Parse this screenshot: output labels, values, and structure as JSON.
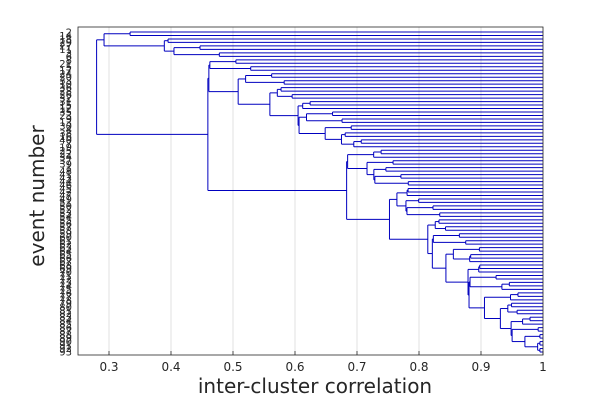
{
  "chart_data": {
    "type": "dendrogram",
    "title": "",
    "xlabel": "inter-cluster correlation",
    "ylabel": "event number",
    "xlim": [
      0.25,
      1.0
    ],
    "xticks": [
      "0.3",
      "0.4",
      "0.5",
      "0.6",
      "0.7",
      "0.8",
      "0.9",
      "1"
    ],
    "xtick_values": [
      0.3,
      0.4,
      0.5,
      0.6,
      0.7,
      0.8,
      0.9,
      1.0
    ],
    "grid": "vertical",
    "line_color": "#0000bf",
    "leaf_labels": [
      "2",
      "14",
      "18",
      "29",
      "27",
      "11",
      "3",
      "6",
      "8",
      "21",
      "5",
      "17",
      "24",
      "20",
      "33",
      "10",
      "36",
      "28",
      "26",
      "32",
      "31",
      "15",
      "12",
      "35",
      "23",
      "9",
      "13",
      "30",
      "4",
      "38",
      "16",
      "40",
      "7",
      "19",
      "25",
      "22",
      "34",
      "37",
      "39",
      "1",
      "48",
      "41",
      "43",
      "44",
      "46",
      "45",
      "42",
      "47",
      "49",
      "51",
      "50",
      "52",
      "53",
      "54",
      "55",
      "56",
      "57",
      "58",
      "59",
      "60",
      "61",
      "62",
      "63",
      "64",
      "65",
      "66",
      "67",
      "68",
      "69",
      "70",
      "71",
      "72",
      "73",
      "74",
      "75",
      "76",
      "77",
      "78",
      "79",
      "80",
      "81",
      "82",
      "83",
      "84",
      "85",
      "86",
      "87",
      "88",
      "89",
      "90",
      "91",
      "92",
      "93"
    ],
    "merge_heights": [
      0.29,
      0.3,
      0.33,
      0.36,
      0.37,
      0.4,
      0.41,
      0.43,
      0.46,
      0.49,
      0.5,
      0.51,
      0.53,
      0.56,
      0.61,
      0.65,
      0.69,
      0.71,
      0.74,
      0.82,
      0.85,
      0.88,
      0.91,
      0.93,
      0.95,
      0.96,
      0.97,
      0.98,
      0.99
    ]
  }
}
